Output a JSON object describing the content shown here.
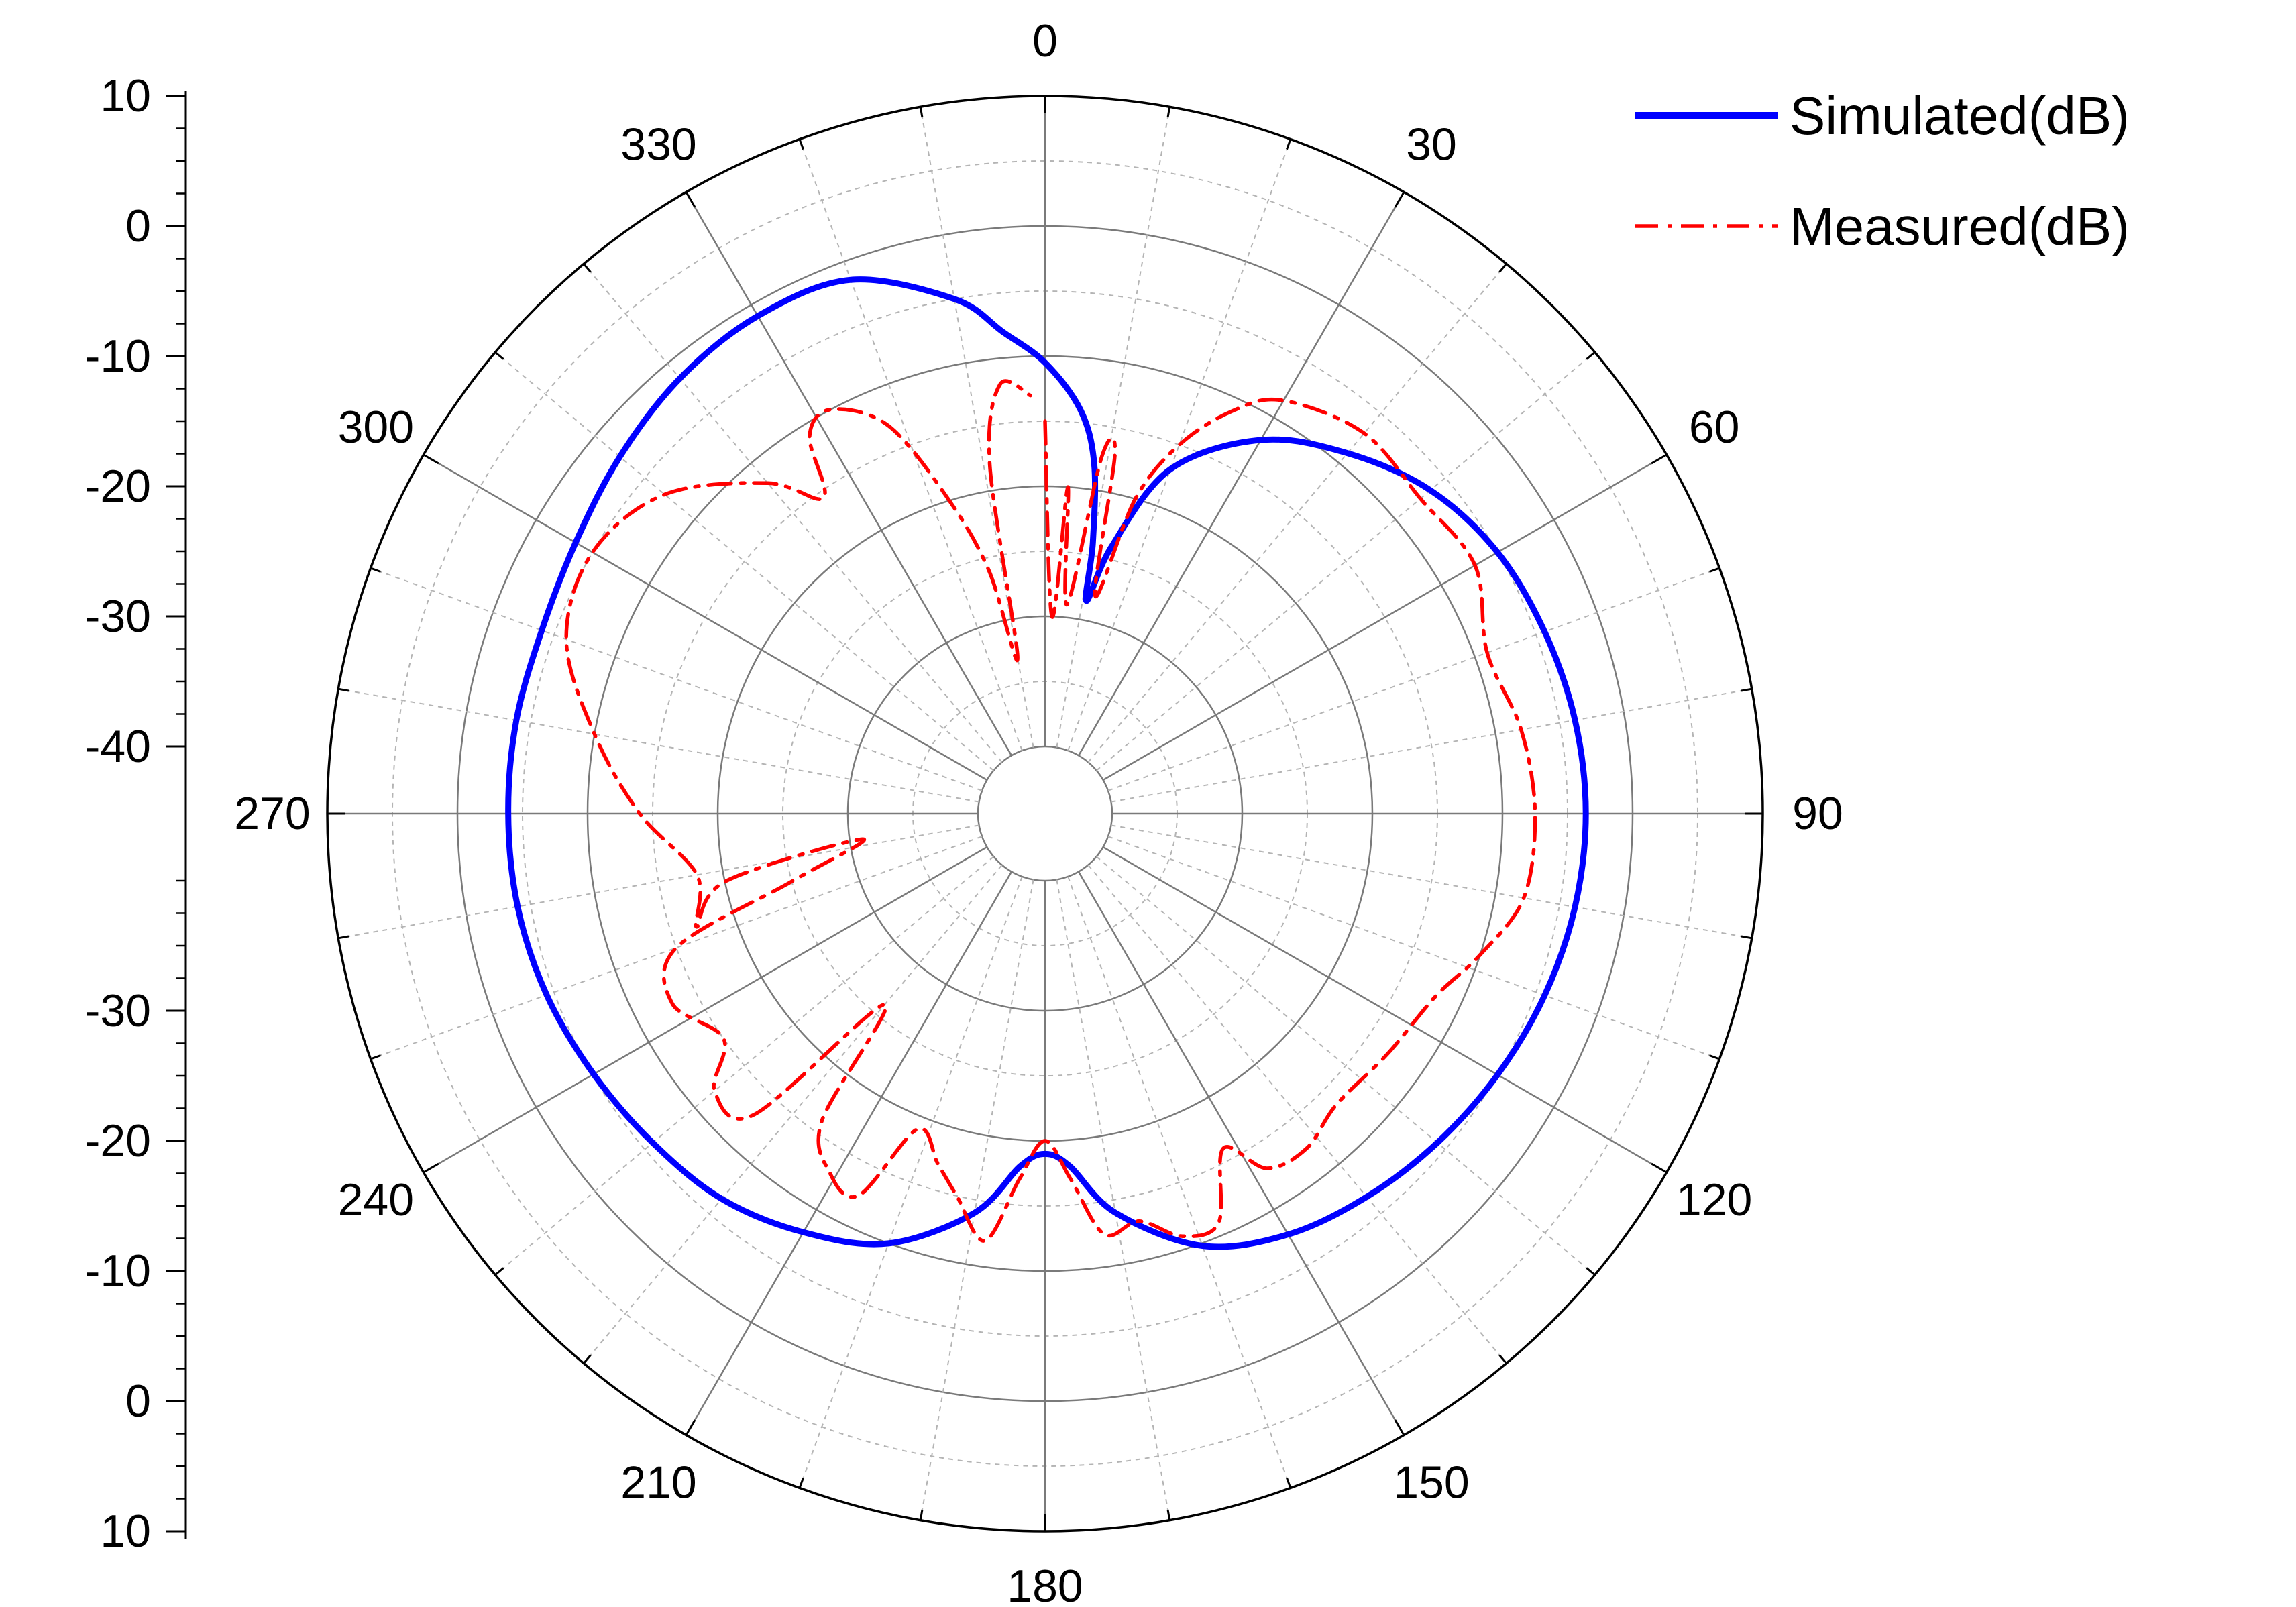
{
  "chart_data": {
    "type": "polar-line",
    "title": "",
    "radial_axis": {
      "unit": "dB",
      "r_range": [
        -40,
        10
      ],
      "tick_values": [
        10,
        0,
        -10,
        -20,
        -30,
        -40
      ],
      "tick_labels_left": [
        "10",
        "0",
        "-10",
        "-20",
        "-30",
        "-40",
        "-30",
        "-20",
        "-10",
        "0",
        "10"
      ]
    },
    "angular_axis": {
      "direction": "clockwise",
      "zero_at": "top",
      "tick_labels": [
        "0",
        "30",
        "60",
        "90",
        "120",
        "150",
        "180",
        "210",
        "240",
        "270",
        "300",
        "330"
      ]
    },
    "legend": {
      "position": "top-right",
      "items": [
        {
          "label": "Simulated(dB)",
          "color": "#0000ff",
          "style": "solid"
        },
        {
          "label": "Measured(dB)",
          "color": "#ff0000",
          "style": "dash-dot"
        }
      ]
    },
    "series": [
      {
        "name": "Simulated(dB)",
        "color": "#0000ff",
        "points": [
          {
            "angle": 0,
            "r": -10.5
          },
          {
            "angle": 5,
            "r": -14
          },
          {
            "angle": 8,
            "r": -18
          },
          {
            "angle": 10,
            "r": -24
          },
          {
            "angle": 11,
            "r": -28.5
          },
          {
            "angle": 14,
            "r": -24
          },
          {
            "angle": 20,
            "r": -17
          },
          {
            "angle": 30,
            "r": -12
          },
          {
            "angle": 40,
            "r": -9
          },
          {
            "angle": 50,
            "r": -6.5
          },
          {
            "angle": 60,
            "r": -5
          },
          {
            "angle": 70,
            "r": -4.3
          },
          {
            "angle": 80,
            "r": -3.8
          },
          {
            "angle": 90,
            "r": -3.6
          },
          {
            "angle": 100,
            "r": -3.8
          },
          {
            "angle": 110,
            "r": -4.3
          },
          {
            "angle": 120,
            "r": -5
          },
          {
            "angle": 130,
            "r": -5.8
          },
          {
            "angle": 140,
            "r": -6.7
          },
          {
            "angle": 150,
            "r": -7.8
          },
          {
            "angle": 160,
            "r": -9.8
          },
          {
            "angle": 170,
            "r": -14
          },
          {
            "angle": 176,
            "r": -18
          },
          {
            "angle": 180,
            "r": -19
          },
          {
            "angle": 184,
            "r": -18
          },
          {
            "angle": 190,
            "r": -14
          },
          {
            "angle": 200,
            "r": -10
          },
          {
            "angle": 210,
            "r": -8
          },
          {
            "angle": 220,
            "r": -6.5
          },
          {
            "angle": 230,
            "r": -5.8
          },
          {
            "angle": 240,
            "r": -5.1
          },
          {
            "angle": 250,
            "r": -4.4
          },
          {
            "angle": 260,
            "r": -4.0
          },
          {
            "angle": 270,
            "r": -3.9
          },
          {
            "angle": 280,
            "r": -3.9
          },
          {
            "angle": 290,
            "r": -4.0
          },
          {
            "angle": 300,
            "r": -3.5
          },
          {
            "angle": 310,
            "r": -2.5
          },
          {
            "angle": 320,
            "r": -1.5
          },
          {
            "angle": 330,
            "r": -1.0
          },
          {
            "angle": 340,
            "r": -1.5
          },
          {
            "angle": 350,
            "r": -5
          },
          {
            "angle": 355,
            "r": -8
          }
        ]
      },
      {
        "name": "Measured(dB)",
        "color": "#ff0000",
        "points": [
          {
            "angle": 0,
            "r": -15
          },
          {
            "angle": 2,
            "r": -30
          },
          {
            "angle": 4,
            "r": -20
          },
          {
            "angle": 6,
            "r": -29
          },
          {
            "angle": 9,
            "r": -17.5
          },
          {
            "angle": 11,
            "r": -17
          },
          {
            "angle": 13,
            "r": -28
          },
          {
            "angle": 16,
            "r": -20
          },
          {
            "angle": 20,
            "r": -15
          },
          {
            "angle": 25,
            "r": -11
          },
          {
            "angle": 30,
            "r": -8.5
          },
          {
            "angle": 40,
            "r": -7
          },
          {
            "angle": 50,
            "r": -7.5
          },
          {
            "angle": 60,
            "r": -7
          },
          {
            "angle": 70,
            "r": -9
          },
          {
            "angle": 80,
            "r": -8
          },
          {
            "angle": 90,
            "r": -7.5
          },
          {
            "angle": 100,
            "r": -7.8
          },
          {
            "angle": 108,
            "r": -10
          },
          {
            "angle": 115,
            "r": -12
          },
          {
            "angle": 125,
            "r": -13
          },
          {
            "angle": 135,
            "r": -13.5
          },
          {
            "angle": 142,
            "r": -12.5
          },
          {
            "angle": 148,
            "r": -13
          },
          {
            "angle": 152,
            "r": -16
          },
          {
            "angle": 157,
            "r": -11
          },
          {
            "angle": 162,
            "r": -11
          },
          {
            "angle": 167,
            "r": -13
          },
          {
            "angle": 172,
            "r": -12.5
          },
          {
            "angle": 176,
            "r": -17
          },
          {
            "angle": 180,
            "r": -20
          },
          {
            "angle": 184,
            "r": -17
          },
          {
            "angle": 188,
            "r": -12
          },
          {
            "angle": 193,
            "r": -15
          },
          {
            "angle": 197,
            "r": -17
          },
          {
            "angle": 202,
            "r": -19
          },
          {
            "angle": 206,
            "r": -12.5
          },
          {
            "angle": 211,
            "r": -13
          },
          {
            "angle": 216,
            "r": -16
          },
          {
            "angle": 220,
            "r": -26
          },
          {
            "angle": 224,
            "r": -13
          },
          {
            "angle": 230,
            "r": -12
          },
          {
            "angle": 235,
            "r": -15
          },
          {
            "angle": 243,
            "r": -13
          },
          {
            "angle": 250,
            "r": -15
          },
          {
            "angle": 255,
            "r": -25
          },
          {
            "angle": 262,
            "r": -31
          },
          {
            "angle": 258,
            "r": -20
          },
          {
            "angle": 252,
            "r": -17
          },
          {
            "angle": 260,
            "r": -18
          },
          {
            "angle": 270,
            "r": -14
          },
          {
            "angle": 280,
            "r": -10
          },
          {
            "angle": 290,
            "r": -6
          },
          {
            "angle": 300,
            "r": -5
          },
          {
            "angle": 310,
            "r": -7
          },
          {
            "angle": 320,
            "r": -12
          },
          {
            "angle": 325,
            "r": -15.5
          },
          {
            "angle": 328,
            "r": -11
          },
          {
            "angle": 332,
            "r": -10
          },
          {
            "angle": 338,
            "r": -13
          },
          {
            "angle": 343,
            "r": -20
          },
          {
            "angle": 347,
            "r": -26
          },
          {
            "angle": 350,
            "r": -33
          },
          {
            "angle": 351,
            "r": -18
          },
          {
            "angle": 354,
            "r": -12
          },
          {
            "angle": 358,
            "r": -13
          }
        ]
      }
    ]
  }
}
